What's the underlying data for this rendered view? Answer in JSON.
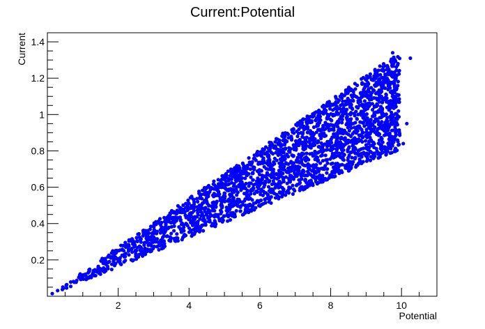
{
  "chart_data": {
    "type": "scatter",
    "title": "Current:Potential",
    "xlabel": "Potential",
    "ylabel": "Current",
    "xlim": [
      0,
      11
    ],
    "ylim": [
      0,
      1.45
    ],
    "x_ticks": [
      2,
      4,
      6,
      8,
      10
    ],
    "y_ticks": [
      0.2,
      0.4,
      0.6,
      0.8,
      1.0,
      1.2,
      1.4
    ],
    "x_tick_labels": [
      "2",
      "4",
      "6",
      "8",
      "10"
    ],
    "y_tick_labels": [
      "0.2",
      "0.4",
      "0.6",
      "0.8",
      "1",
      "1.2",
      "1.4"
    ],
    "grid": false,
    "marker_color": "#0000ff",
    "series": [
      {
        "distribution_note": "points fill a wedge from origin: lower boundary y≈0.081x, upper boundary y≈0.135x, x spans 0 to about 10",
        "x_range": [
          0,
          10.3
        ],
        "lower_slope": 0.081,
        "upper_slope": 0.135
      }
    ]
  }
}
